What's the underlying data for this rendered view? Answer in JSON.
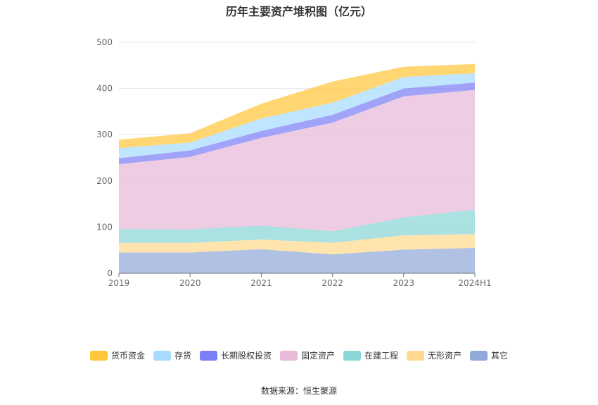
{
  "chart_data": {
    "type": "area",
    "stacked": true,
    "title": "历年主要资产堆积图（亿元）",
    "categories": [
      "2019",
      "2020",
      "2021",
      "2022",
      "2023",
      "2024H1"
    ],
    "ylim": [
      0,
      500
    ],
    "yticks": [
      0,
      100,
      200,
      300,
      400,
      500
    ],
    "grid": true,
    "legend_position": "bottom",
    "series": [
      {
        "name": "其它",
        "color": "#91a9d9",
        "values": [
          45,
          45,
          52,
          41,
          51,
          55
        ]
      },
      {
        "name": "无形资产",
        "color": "#ffd98f",
        "values": [
          21,
          21,
          21,
          25,
          31,
          30
        ]
      },
      {
        "name": "在建工程",
        "color": "#8ad6d6",
        "values": [
          30,
          29,
          30,
          25,
          39,
          53
        ]
      },
      {
        "name": "固定资产",
        "color": "#e8b9d9",
        "values": [
          140,
          157,
          190,
          235,
          262,
          259
        ]
      },
      {
        "name": "长期股权投资",
        "color": "#7b7ff5",
        "values": [
          13,
          14,
          15,
          17,
          17,
          16
        ]
      },
      {
        "name": "存货",
        "color": "#a8dcff",
        "values": [
          22,
          17,
          27,
          26,
          25,
          20
        ]
      },
      {
        "name": "货币资金",
        "color": "#ffc63a",
        "values": [
          18,
          20,
          32,
          46,
          22,
          20
        ]
      }
    ],
    "legend_order": [
      "货币资金",
      "存货",
      "长期股权投资",
      "固定资产",
      "在建工程",
      "无形资产",
      "其它"
    ]
  },
  "source": "数据来源：恒生聚源"
}
